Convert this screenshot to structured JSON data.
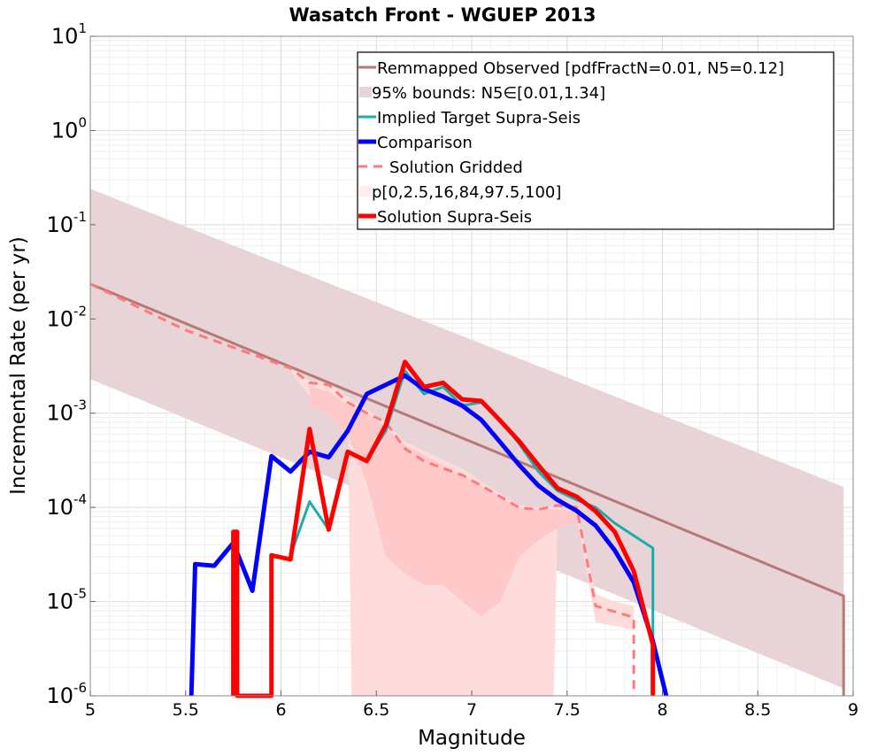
{
  "chart_data": {
    "type": "line",
    "title": "Wasatch Front - WGUEP 2013",
    "xlabel": "Magnitude",
    "ylabel": "Incremental Rate (per yr)",
    "xlim": [
      5,
      9
    ],
    "ylim_log10": [
      -6,
      1
    ],
    "yscale": "log",
    "grid": true,
    "legend_position": "top-right",
    "x_ticks": [
      {
        "value": 5,
        "label": "5"
      },
      {
        "value": 5.5,
        "label": "5.5"
      },
      {
        "value": 6,
        "label": "6"
      },
      {
        "value": 6.5,
        "label": "6.5"
      },
      {
        "value": 7,
        "label": "7"
      },
      {
        "value": 7.5,
        "label": "7.5"
      },
      {
        "value": 8,
        "label": "8"
      },
      {
        "value": 8.5,
        "label": "8.5"
      },
      {
        "value": 9,
        "label": "9"
      }
    ],
    "y_ticks": [
      {
        "exp": 1,
        "base": "10",
        "sup": "1"
      },
      {
        "exp": 0,
        "base": "10",
        "sup": "0"
      },
      {
        "exp": -1,
        "base": "10",
        "sup": "-1"
      },
      {
        "exp": -2,
        "base": "10",
        "sup": "-2"
      },
      {
        "exp": -3,
        "base": "10",
        "sup": "-3"
      },
      {
        "exp": -4,
        "base": "10",
        "sup": "-4"
      },
      {
        "exp": -5,
        "base": "10",
        "sup": "-5"
      },
      {
        "exp": -6,
        "base": "10",
        "sup": "-6"
      }
    ],
    "legend": [
      {
        "label": "Remmapped Observed [pdfFractN=0.01, N5=0.12]",
        "color": "#b87878",
        "kind": "line",
        "width": 3
      },
      {
        "label": "95% bounds: N5∈[0.01,1.34]",
        "color": "#e8d4d6",
        "kind": "band"
      },
      {
        "label": "Implied Target Supra-Seis",
        "color": "#1aadad",
        "kind": "line",
        "width": 3
      },
      {
        "label": "Comparison",
        "color": "#0000ff",
        "kind": "line",
        "width": 5
      },
      {
        "label": "Solution Gridded",
        "color": "#ff7a7a",
        "kind": "dashed",
        "width": 3
      },
      {
        "label": "p[0,2.5,16,84,97.5,100]",
        "color": "#ffecec",
        "kind": "band"
      },
      {
        "label": "Solution Supra-Seis",
        "color": "#ff0000",
        "kind": "line",
        "width": 5
      }
    ],
    "bands": [
      {
        "name": "95% bounds",
        "color": "#e8d4d6",
        "x": [
          5.0,
          8.95,
          8.95
        ],
        "upper": [
          0.24,
          0.000165,
          0.000165
        ],
        "lower": [
          0.0023,
          1.2e-06,
          8e-07
        ]
      },
      {
        "name": "p outer",
        "color": "#ffdcdc",
        "x": [
          6.05,
          6.15,
          6.25,
          6.35,
          6.37,
          6.45,
          6.55,
          6.65,
          6.75,
          6.85,
          6.95,
          7.05,
          7.15,
          7.25,
          7.35,
          7.43,
          7.45,
          7.55,
          7.65,
          7.75,
          7.85
        ],
        "upper": [
          0.003,
          0.0022,
          0.0021,
          0.0015,
          0.0014,
          0.0011,
          0.0008,
          0.0005,
          0.0004,
          0.00032,
          0.00026,
          0.00019,
          0.00014,
          0.000105,
          0.0001,
          0.0001,
          0.0001,
          9e-05,
          1.2e-05,
          1e-05,
          9e-06
        ],
        "lower": [
          0.0028,
          0.0015,
          0.0012,
          0.0009,
          1e-06,
          1e-06,
          1e-06,
          1e-06,
          1e-06,
          1e-06,
          1e-06,
          1e-06,
          1e-06,
          1e-06,
          1e-06,
          1e-06,
          7e-05,
          8e-05,
          6e-06,
          5.5e-06,
          5e-06
        ]
      },
      {
        "name": "p inner",
        "color": "#ffc9c9",
        "x": [
          6.15,
          6.25,
          6.35,
          6.45,
          6.55,
          6.65,
          6.75,
          6.85,
          6.95,
          7.05,
          7.15,
          7.25,
          7.35,
          7.45,
          7.55
        ],
        "upper": [
          0.0019,
          0.0017,
          0.0012,
          0.001,
          0.0007,
          0.00045,
          0.00036,
          0.00028,
          0.00022,
          0.00017,
          0.00013,
          0.0001,
          9.5e-05,
          9.5e-05,
          9e-05
        ],
        "lower": [
          0.0012,
          0.00095,
          0.0006,
          0.00018,
          3e-05,
          2e-05,
          1.5e-05,
          1.5e-05,
          1e-05,
          7e-06,
          1e-05,
          3e-05,
          4.5e-05,
          6e-05,
          7e-05
        ]
      }
    ],
    "series": [
      {
        "name": "Remmapped Observed [pdfFractN=0.01, N5=0.12]",
        "color": "#b87878",
        "width": 3,
        "dash": "",
        "x": [
          5.0,
          8.95,
          8.95
        ],
        "y": [
          0.0235,
          1.15e-05,
          1e-06
        ]
      },
      {
        "name": "Solution Gridded",
        "color": "#ff7a7a",
        "width": 3,
        "dash": "10,7",
        "x": [
          5.0,
          5.5,
          6.05,
          6.15,
          6.25,
          6.35,
          6.45,
          6.55,
          6.65,
          6.75,
          6.85,
          6.95,
          7.05,
          7.15,
          7.25,
          7.35,
          7.45,
          7.55,
          7.65,
          7.75,
          7.85,
          7.85
        ],
        "y": [
          0.0235,
          0.0076,
          0.003,
          0.0021,
          0.002,
          0.0013,
          0.001,
          0.0008,
          0.00042,
          0.00031,
          0.00026,
          0.00022,
          0.00017,
          0.00013,
          9.9e-05,
          9.5e-05,
          0.000105,
          0.0001,
          9e-06,
          7.8e-06,
          6.8e-06,
          1e-06
        ]
      },
      {
        "name": "Implied Target Supra-Seis",
        "color": "#1aadad",
        "width": 3,
        "dash": "",
        "x": [
          6.05,
          6.15,
          6.25,
          6.35,
          6.45,
          6.55,
          6.65,
          6.75,
          6.85,
          6.95,
          7.05,
          7.15,
          7.25,
          7.35,
          7.45,
          7.55,
          7.65,
          7.75,
          7.85,
          7.95,
          7.95
        ],
        "y": [
          3.1e-05,
          0.000115,
          5.8e-05,
          0.00039,
          0.00031,
          0.00065,
          0.0028,
          0.0016,
          0.0019,
          0.0012,
          0.0013,
          0.00085,
          0.00047,
          0.00024,
          0.00015,
          0.00012,
          0.0001,
          6.8e-05,
          5e-05,
          3.7e-05,
          1e-06
        ]
      },
      {
        "name": "Comparison",
        "color": "#0000ff",
        "width": 5,
        "dash": "",
        "x": [
          5.53,
          5.55,
          5.65,
          5.75,
          5.85,
          5.95,
          6.05,
          6.15,
          6.25,
          6.35,
          6.45,
          6.55,
          6.65,
          6.75,
          6.85,
          6.95,
          7.05,
          7.15,
          7.25,
          7.35,
          7.45,
          7.55,
          7.65,
          7.75,
          7.85,
          7.95,
          8.02
        ],
        "y": [
          1e-06,
          2.5e-05,
          2.4e-05,
          4.2e-05,
          1.3e-05,
          0.00035,
          0.00024,
          0.00039,
          0.00034,
          0.00065,
          0.0016,
          0.002,
          0.0025,
          0.0018,
          0.0015,
          0.0012,
          0.00085,
          0.00049,
          0.00028,
          0.00017,
          0.00012,
          9.2e-05,
          6.4e-05,
          3.5e-05,
          1.6e-05,
          3.8e-06,
          1e-06
        ]
      },
      {
        "name": "Solution Supra-Seis",
        "color": "#ff0000",
        "width": 5,
        "dash": "",
        "x": [
          5.75,
          5.75,
          5.77,
          5.77,
          5.95,
          5.95,
          6.05,
          6.15,
          6.25,
          6.35,
          6.45,
          6.55,
          6.65,
          6.75,
          6.85,
          6.95,
          7.05,
          7.15,
          7.25,
          7.35,
          7.45,
          7.55,
          7.65,
          7.75,
          7.85,
          7.95,
          7.95
        ],
        "y": [
          1e-06,
          5.5e-05,
          5.5e-05,
          1e-06,
          1e-06,
          3.1e-05,
          2.8e-05,
          0.00068,
          5.8e-05,
          0.00039,
          0.00031,
          0.00075,
          0.0035,
          0.0019,
          0.0021,
          0.0014,
          0.00135,
          0.00083,
          0.0005,
          0.00028,
          0.00016,
          0.00013,
          9.1e-05,
          5.5e-05,
          2.1e-05,
          3.5e-06,
          1e-06
        ]
      }
    ]
  }
}
